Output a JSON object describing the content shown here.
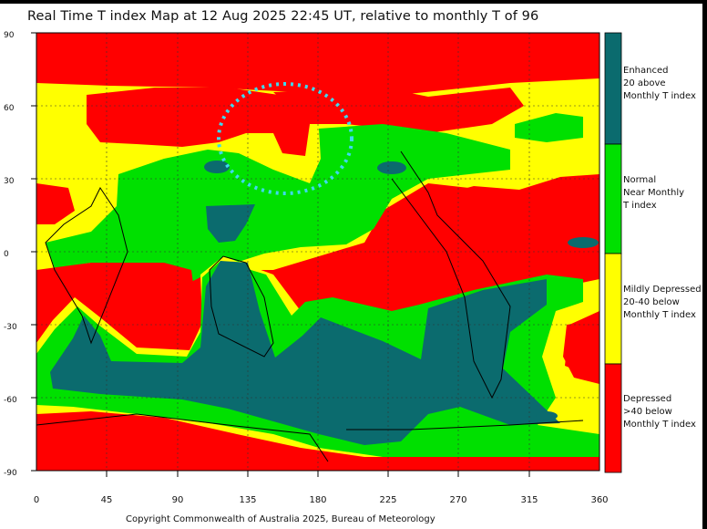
{
  "title": "Real Time T index Map at 12 Aug 2025 22:45 UT, relative to monthly T of 96",
  "axes": {
    "y_ticks": [
      "90",
      "60",
      "30",
      "0",
      "-30",
      "-60",
      "-90"
    ],
    "x_ticks": [
      "0",
      "45",
      "90",
      "135",
      "180",
      "225",
      "270",
      "315",
      "360"
    ]
  },
  "legend": [
    {
      "label": "Enhanced\n20 above\nMonthly T index",
      "color": "#0b6b6e"
    },
    {
      "label": "Normal\nNear Monthly\nT index",
      "color": "#00e000"
    },
    {
      "label": "Mildly Depressed\n20-40 below\nMonthly T index",
      "color": "#ffff00"
    },
    {
      "label": "Depressed\n>40 below\nMonthly T index",
      "color": "#ff0000"
    }
  ],
  "highlight": {
    "color": "#3dd9ef"
  },
  "copyright": "Copyright Commonwealth of Australia 2025, Bureau of Meteorology"
}
